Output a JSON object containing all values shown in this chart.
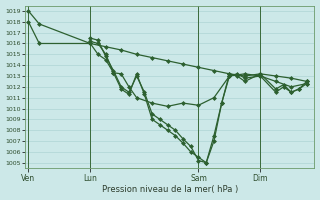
{
  "background_color": "#cce8e8",
  "grid_color": "#a8d0d0",
  "line_color": "#2d6030",
  "xlabel": "Pression niveau de la mer( hPa )",
  "ylim_min": 1004.5,
  "ylim_max": 1019.5,
  "yticks": [
    1005,
    1006,
    1007,
    1008,
    1009,
    1010,
    1011,
    1012,
    1013,
    1014,
    1015,
    1016,
    1017,
    1018,
    1019
  ],
  "xtick_labels": [
    "Ven",
    "Lun",
    "Sam",
    "Dim"
  ],
  "xtick_positions": [
    0,
    4,
    11,
    15
  ],
  "xlim_min": -0.2,
  "xlim_max": 18.5,
  "series1_x": [
    0,
    0.7,
    4,
    5,
    6,
    7,
    8,
    9,
    10,
    11,
    12,
    13,
    14,
    15,
    16,
    17,
    18
  ],
  "series1_y": [
    1019.0,
    1017.8,
    1016.0,
    1015.7,
    1015.4,
    1015.0,
    1014.7,
    1014.4,
    1014.1,
    1013.8,
    1013.5,
    1013.2,
    1013.0,
    1013.2,
    1013.0,
    1012.8,
    1012.5
  ],
  "series2_x": [
    0,
    0.7,
    4,
    4.5,
    5,
    5.5,
    6,
    6.5,
    7,
    8,
    9,
    10,
    11,
    12,
    13,
    14,
    15,
    16,
    17,
    18
  ],
  "series2_y": [
    1018.0,
    1016.0,
    1016.0,
    1015.0,
    1014.5,
    1013.3,
    1013.2,
    1012.0,
    1011.0,
    1010.5,
    1010.2,
    1010.5,
    1010.3,
    1011.0,
    1013.0,
    1013.2,
    1013.0,
    1012.5,
    1012.0,
    1012.3
  ],
  "series3_x": [
    4,
    4.5,
    5,
    5.5,
    6,
    6.5,
    7,
    7.5,
    8,
    8.5,
    9,
    9.5,
    10,
    10.5,
    11,
    11.5,
    12,
    12.5,
    13,
    13.5,
    14,
    15,
    16,
    16.5,
    17,
    17.5,
    18
  ],
  "series3_y": [
    1016.5,
    1016.3,
    1014.8,
    1013.5,
    1012.0,
    1011.5,
    1013.0,
    1011.5,
    1009.5,
    1009.0,
    1008.5,
    1008.0,
    1007.2,
    1006.5,
    1005.2,
    1005.0,
    1007.0,
    1010.5,
    1013.0,
    1013.2,
    1012.8,
    1013.0,
    1011.5,
    1012.0,
    1011.5,
    1011.8,
    1012.3
  ],
  "series4_x": [
    4,
    4.5,
    5,
    5.5,
    6,
    6.5,
    7,
    7.5,
    8,
    8.5,
    9,
    9.5,
    10,
    10.5,
    11,
    11.5,
    12,
    12.5,
    13,
    13.5,
    14,
    15,
    16,
    16.5,
    17,
    17.5,
    18
  ],
  "series4_y": [
    1016.2,
    1016.0,
    1015.0,
    1013.3,
    1011.8,
    1011.3,
    1013.2,
    1011.3,
    1009.0,
    1008.5,
    1008.0,
    1007.5,
    1006.8,
    1006.0,
    1005.5,
    1005.0,
    1007.5,
    1010.5,
    1013.2,
    1013.0,
    1012.5,
    1013.2,
    1011.8,
    1012.2,
    1011.5,
    1011.8,
    1012.5
  ]
}
